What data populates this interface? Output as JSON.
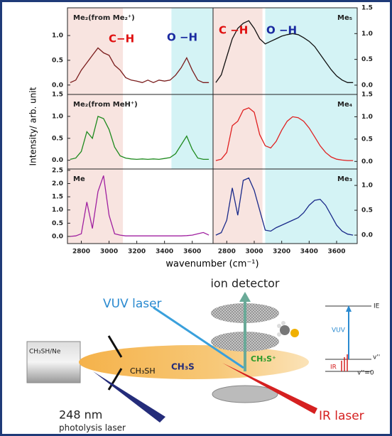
{
  "figure": {
    "y_label": "Intensity/ arb. unit",
    "x_label": "wavenumber (cm⁻¹)"
  },
  "chart_data": [
    {
      "type": "line",
      "title": "Me₂(from Me₂⁺)",
      "color": "#7a1c1c",
      "xlim": [
        2700,
        3750
      ],
      "ylim": [
        -0.19,
        1.56
      ],
      "yticks": [
        {
          "value": 0,
          "label": "0.0"
        },
        {
          "value": 0.5,
          "label": "0.5"
        },
        {
          "value": 1,
          "label": "1.0"
        }
      ],
      "bands": [
        {
          "range": [
            2700,
            3100
          ],
          "color": "#f8e4e0"
        },
        {
          "range": [
            3450,
            3750
          ],
          "color": "#d4f3f5"
        }
      ],
      "annotations": [
        {
          "text": "C−H",
          "color": "#e01010"
        },
        {
          "text": "O −H",
          "color": "#1a2aa0"
        }
      ],
      "x": [
        2720,
        2760,
        2800,
        2840,
        2880,
        2920,
        2960,
        3000,
        3040,
        3080,
        3120,
        3160,
        3200,
        3240,
        3280,
        3320,
        3360,
        3400,
        3440,
        3480,
        3520,
        3560,
        3600,
        3640,
        3680,
        3720
      ],
      "values": [
        0.05,
        0.1,
        0.3,
        0.45,
        0.6,
        0.75,
        0.65,
        0.6,
        0.4,
        0.3,
        0.15,
        0.1,
        0.08,
        0.05,
        0.1,
        0.05,
        0.1,
        0.08,
        0.1,
        0.2,
        0.35,
        0.55,
        0.3,
        0.1,
        0.05,
        0.05
      ]
    },
    {
      "type": "line",
      "title": "Me₅",
      "color": "#111111",
      "xlim": [
        2700,
        3750
      ],
      "ylim": [
        -0.18,
        1.5
      ],
      "yticks": [
        {
          "value": 0,
          "label": "0.0"
        },
        {
          "value": 0.5,
          "label": "0.5"
        },
        {
          "value": 1,
          "label": "1.0"
        },
        {
          "value": 1.5,
          "label": "1.5"
        }
      ],
      "bands": [
        {
          "range": [
            2700,
            3060
          ],
          "color": "#f8e4e0"
        },
        {
          "range": [
            3080,
            3750
          ],
          "color": "#d4f3f5"
        }
      ],
      "annotations": [
        {
          "text": "C −H",
          "color": "#e01010"
        },
        {
          "text": "O −H",
          "color": "#1a2aa0"
        }
      ],
      "x": [
        2720,
        2760,
        2800,
        2840,
        2880,
        2920,
        2960,
        3000,
        3040,
        3080,
        3120,
        3160,
        3200,
        3240,
        3280,
        3320,
        3360,
        3400,
        3440,
        3480,
        3520,
        3560,
        3600,
        3640,
        3680,
        3720
      ],
      "values": [
        0.05,
        0.2,
        0.55,
        0.9,
        1.1,
        1.2,
        1.25,
        1.1,
        0.9,
        0.8,
        0.85,
        0.9,
        0.95,
        0.98,
        1.0,
        0.98,
        0.92,
        0.85,
        0.75,
        0.6,
        0.45,
        0.3,
        0.18,
        0.1,
        0.05,
        0.05
      ]
    },
    {
      "type": "line",
      "title": "Me₂(from MeH⁺)",
      "color": "#1e8a1e",
      "xlim": [
        2700,
        3750
      ],
      "ylim": [
        -0.2,
        1.5
      ],
      "yticks": [
        {
          "value": 0,
          "label": "0.0"
        },
        {
          "value": 0.5,
          "label": "0.5"
        },
        {
          "value": 1,
          "label": "1.0"
        },
        {
          "value": 1.5,
          "label": "1.5"
        }
      ],
      "bands": [
        {
          "range": [
            2700,
            3100
          ],
          "color": "#f8e4e0"
        },
        {
          "range": [
            3450,
            3750
          ],
          "color": "#d4f3f5"
        }
      ],
      "x": [
        2720,
        2760,
        2800,
        2840,
        2880,
        2920,
        2960,
        3000,
        3040,
        3080,
        3120,
        3160,
        3200,
        3240,
        3280,
        3320,
        3360,
        3400,
        3440,
        3480,
        3520,
        3560,
        3600,
        3640,
        3680,
        3720
      ],
      "values": [
        0.02,
        0.05,
        0.2,
        0.65,
        0.5,
        1.0,
        0.95,
        0.7,
        0.3,
        0.1,
        0.05,
        0.03,
        0.02,
        0.03,
        0.02,
        0.03,
        0.02,
        0.04,
        0.06,
        0.15,
        0.35,
        0.55,
        0.25,
        0.05,
        0.02,
        0.02
      ]
    },
    {
      "type": "line",
      "title": "Me₄",
      "color": "#e02020",
      "xlim": [
        2700,
        3750
      ],
      "ylim": [
        -0.17,
        1.5
      ],
      "yticks": [
        {
          "value": 0,
          "label": "0.0"
        },
        {
          "value": 0.5,
          "label": "0.5"
        },
        {
          "value": 1,
          "label": "1.0"
        },
        {
          "value": 1.5,
          "label": "1.5"
        }
      ],
      "bands": [
        {
          "range": [
            2700,
            3060
          ],
          "color": "#f8e4e0"
        },
        {
          "range": [
            3080,
            3750
          ],
          "color": "#d4f3f5"
        }
      ],
      "x": [
        2720,
        2760,
        2800,
        2840,
        2880,
        2920,
        2960,
        3000,
        3040,
        3080,
        3120,
        3160,
        3200,
        3240,
        3280,
        3320,
        3360,
        3400,
        3440,
        3480,
        3520,
        3560,
        3600,
        3640,
        3680,
        3720
      ],
      "values": [
        0.02,
        0.05,
        0.2,
        0.8,
        0.9,
        1.15,
        1.2,
        1.1,
        0.6,
        0.35,
        0.3,
        0.45,
        0.7,
        0.9,
        1.0,
        0.98,
        0.9,
        0.75,
        0.55,
        0.35,
        0.2,
        0.1,
        0.05,
        0.03,
        0.02,
        0.02
      ]
    },
    {
      "type": "line",
      "title": "Me",
      "color": "#a020a0",
      "xlim": [
        2700,
        3750
      ],
      "ylim": [
        -0.27,
        2.55
      ],
      "yticks": [
        {
          "value": 0,
          "label": "0.0"
        },
        {
          "value": 0.5,
          "label": "0.5"
        },
        {
          "value": 1,
          "label": "1.0"
        },
        {
          "value": 1.5,
          "label": "1.5"
        },
        {
          "value": 2,
          "label": "2.0"
        },
        {
          "value": 2.5,
          "label": "2.5"
        }
      ],
      "xticks": [
        2800,
        3000,
        3200,
        3400,
        3600
      ],
      "bands": [
        {
          "range": [
            2700,
            3100
          ],
          "color": "#f8e4e0"
        }
      ],
      "x": [
        2720,
        2760,
        2800,
        2840,
        2880,
        2920,
        2960,
        3000,
        3040,
        3080,
        3120,
        3160,
        3200,
        3240,
        3280,
        3320,
        3360,
        3400,
        3440,
        3480,
        3520,
        3560,
        3600,
        3640,
        3680,
        3720
      ],
      "values": [
        0,
        0.02,
        0.1,
        1.3,
        0.3,
        1.7,
        2.3,
        0.8,
        0.1,
        0.05,
        0.02,
        0.02,
        0.02,
        0.02,
        0.02,
        0.02,
        0.02,
        0.02,
        0.02,
        0.02,
        0.02,
        0.03,
        0.05,
        0.1,
        0.15,
        0.05
      ]
    },
    {
      "type": "line",
      "title": "Me₃",
      "color": "#1a2a8a",
      "xlim": [
        2700,
        3750
      ],
      "ylim": [
        -0.17,
        1.33
      ],
      "yticks": [
        {
          "value": 0,
          "label": "0.0"
        },
        {
          "value": 0.5,
          "label": "0.5"
        },
        {
          "value": 1,
          "label": "1.0"
        }
      ],
      "xticks": [
        2800,
        3000,
        3200,
        3400,
        3600
      ],
      "bands": [
        {
          "range": [
            2700,
            3060
          ],
          "color": "#f8e4e0"
        },
        {
          "range": [
            3080,
            3750
          ],
          "color": "#d4f3f5"
        }
      ],
      "x": [
        2720,
        2760,
        2800,
        2840,
        2880,
        2920,
        2960,
        3000,
        3040,
        3080,
        3120,
        3160,
        3200,
        3240,
        3280,
        3320,
        3360,
        3400,
        3440,
        3480,
        3520,
        3560,
        3600,
        3640,
        3680,
        3720
      ],
      "values": [
        0,
        0.05,
        0.3,
        0.95,
        0.4,
        1.1,
        1.15,
        0.9,
        0.5,
        0.1,
        0.08,
        0.15,
        0.2,
        0.25,
        0.3,
        0.35,
        0.45,
        0.6,
        0.7,
        0.72,
        0.6,
        0.4,
        0.2,
        0.08,
        0.02,
        0
      ]
    }
  ],
  "diagram": {
    "detector": "ion detector",
    "vuv": "VUV laser",
    "nozzle": "CH₃SH/Ne",
    "parent": "CH₃SH",
    "radical": "CH₃S",
    "ion": "CH₃S⁺",
    "ir": "IR laser",
    "wavelength": "248 nm",
    "photolysis": "photolysis laser",
    "ie": "IE",
    "vuv_arrow": "VUV",
    "v_excited": "v''",
    "ir_arrow": "IR",
    "v_ground": "v''=0"
  }
}
